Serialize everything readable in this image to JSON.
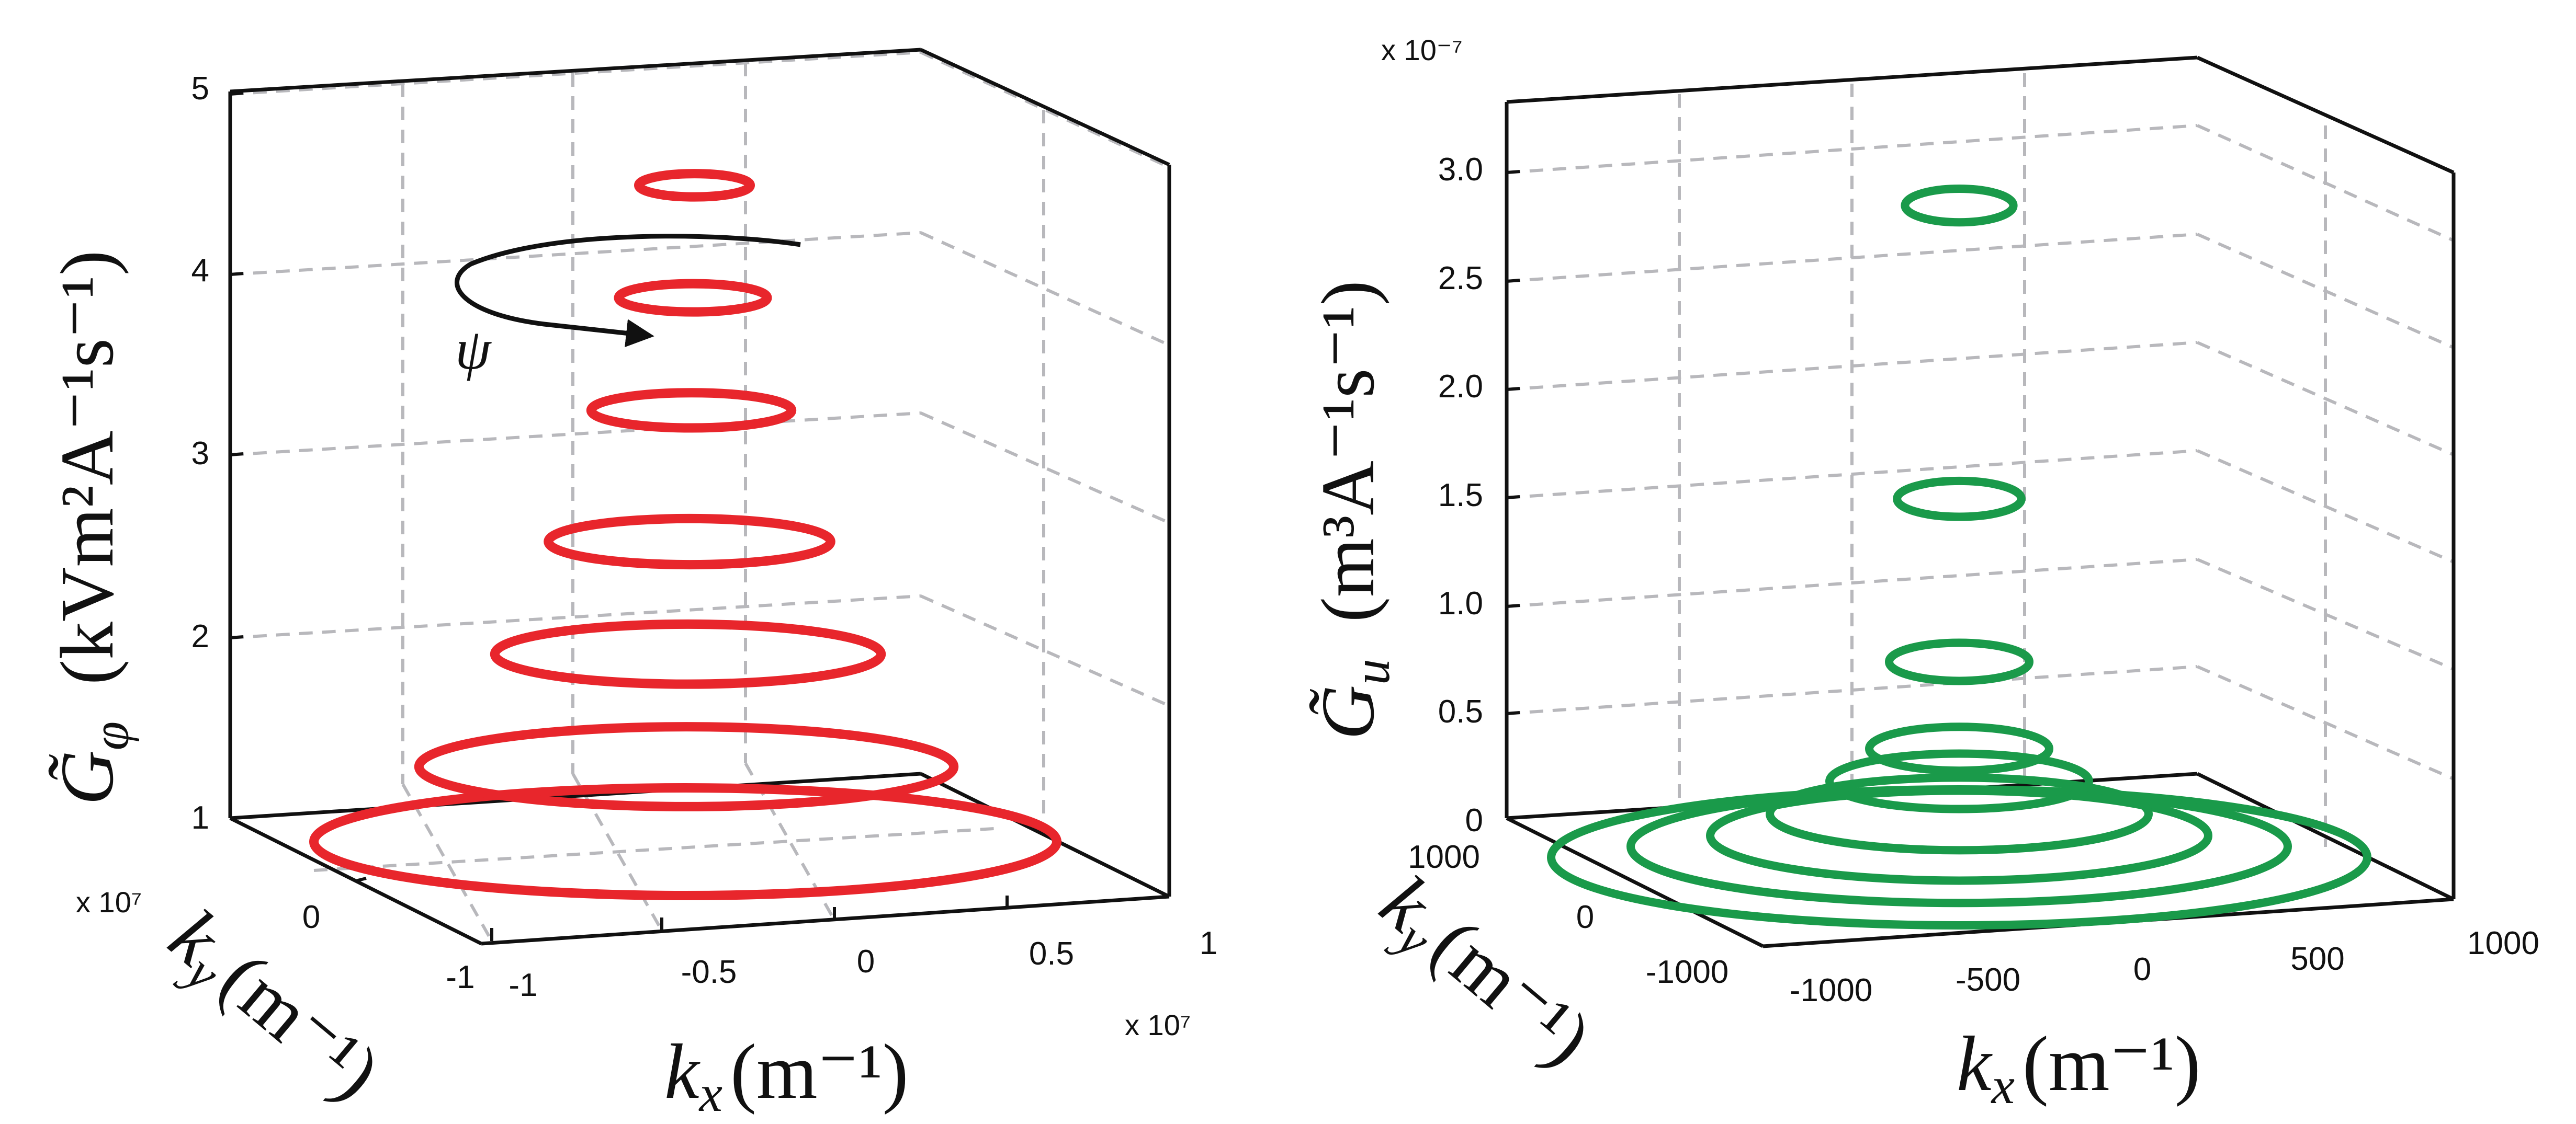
{
  "chart_data": [
    {
      "type": "3d-contour",
      "name": "G_phi",
      "color": "#e8262c",
      "zlabel_symbol": "G̃",
      "zlabel_sub": "φ",
      "zlabel_units": "(kVm²A⁻¹s⁻¹)",
      "xlabel": "(m⁻¹)",
      "ylabel": "(m⁻¹)",
      "x_sym": "k",
      "x_sub": "x",
      "y_sym": "k",
      "y_sub": "y",
      "z_ticks": [
        "1",
        "2",
        "3",
        "4",
        "5"
      ],
      "x_ticks": [
        "-1",
        "-0.5",
        "0",
        "0.5",
        "1"
      ],
      "y_ticks": [
        "-1",
        "0"
      ],
      "x_multiplier": "x 10⁷",
      "y_multiplier": "x 10⁷",
      "zlim": [
        1,
        5
      ],
      "xlim": [
        -1,
        1
      ],
      "ylim": [
        -1,
        1
      ],
      "annotation": "ψ",
      "rings": [
        {
          "z": 1.0,
          "radius": 1.0
        },
        {
          "z": 1.4,
          "radius": 0.72
        },
        {
          "z": 2.0,
          "radius": 0.52
        },
        {
          "z": 2.6,
          "radius": 0.38
        },
        {
          "z": 3.3,
          "radius": 0.27
        },
        {
          "z": 3.9,
          "radius": 0.2
        },
        {
          "z": 4.5,
          "radius": 0.15
        }
      ]
    },
    {
      "type": "3d-contour",
      "name": "G_u",
      "color": "#1a9a4a",
      "zlabel_symbol": "G̃",
      "zlabel_sub": "u",
      "zlabel_units": "(m³A⁻¹s⁻¹)",
      "xlabel": "(m⁻¹)",
      "ylabel": "(m⁻¹)",
      "x_sym": "k",
      "x_sub": "x",
      "y_sym": "k",
      "y_sub": "y",
      "z_ticks": [
        "0",
        "0.5",
        "1.0",
        "1.5",
        "2.0",
        "2.5",
        "3.0"
      ],
      "x_ticks": [
        "-1000",
        "-500",
        "0",
        "500",
        "1000"
      ],
      "y_ticks": [
        "1000",
        "0",
        "-1000"
      ],
      "z_multiplier": "x 10⁻⁷",
      "zlim": [
        0,
        3.2
      ],
      "xlim": [
        -1000,
        1000
      ],
      "ylim": [
        -1000,
        1000
      ],
      "rings": [
        {
          "z": 0.0,
          "radius": 1000
        },
        {
          "z": 0.05,
          "radius": 800
        },
        {
          "z": 0.1,
          "radius": 600
        },
        {
          "z": 0.2,
          "radius": 450
        },
        {
          "z": 0.35,
          "radius": 300
        },
        {
          "z": 0.5,
          "radius": 200
        },
        {
          "z": 0.9,
          "radius": 150
        },
        {
          "z": 1.65,
          "radius": 130
        },
        {
          "z": 3.0,
          "radius": 110
        }
      ]
    }
  ]
}
